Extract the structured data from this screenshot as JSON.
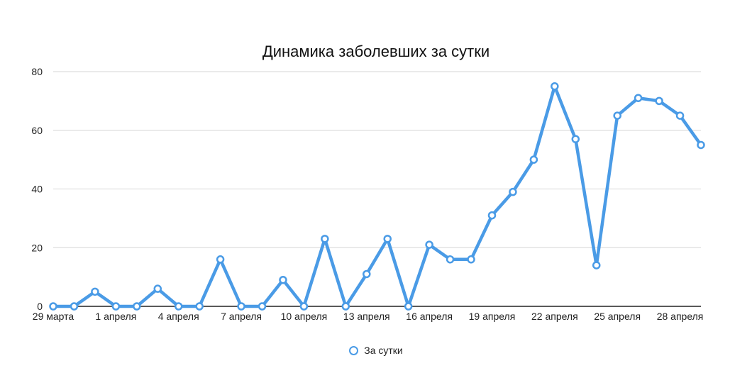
{
  "chart_data": {
    "type": "line",
    "title": "Динамика заболевших за сутки",
    "xlabel": "",
    "ylabel": "",
    "ylim": [
      0,
      80
    ],
    "yticks": [
      "0",
      "20",
      "40",
      "60",
      "80"
    ],
    "grid": true,
    "legend_position": "bottom",
    "x": [
      "29 марта",
      "30 марта",
      "31 марта",
      "1 апреля",
      "2 апреля",
      "3 апреля",
      "4 апреля",
      "5 апреля",
      "6 апреля",
      "7 апреля",
      "8 апреля",
      "9 апреля",
      "10 апреля",
      "11 апреля",
      "12 апреля",
      "13 апреля",
      "14 апреля",
      "15 апреля",
      "16 апреля",
      "17 апреля",
      "18 апреля",
      "19 апреля",
      "20 апреля",
      "21 апреля",
      "22 апреля",
      "23 апреля",
      "24 апреля",
      "25 апреля",
      "26 апреля",
      "27 апреля",
      "28 апреля",
      "29 апреля"
    ],
    "xtick_labels": [
      "29 марта",
      "1 апреля",
      "4 апреля",
      "7 апреля",
      "10 апреля",
      "13 апреля",
      "16 апреля",
      "19 апреля",
      "22 апреля",
      "25 апреля",
      "28 апреля"
    ],
    "series": [
      {
        "name": "За сутки",
        "color": "#4a9be6",
        "values": [
          0,
          0,
          5,
          0,
          0,
          6,
          0,
          0,
          16,
          0,
          0,
          9,
          0,
          23,
          0,
          11,
          23,
          0,
          21,
          16,
          16,
          31,
          39,
          50,
          75,
          57,
          14,
          65,
          71,
          70,
          65,
          55
        ]
      }
    ]
  }
}
